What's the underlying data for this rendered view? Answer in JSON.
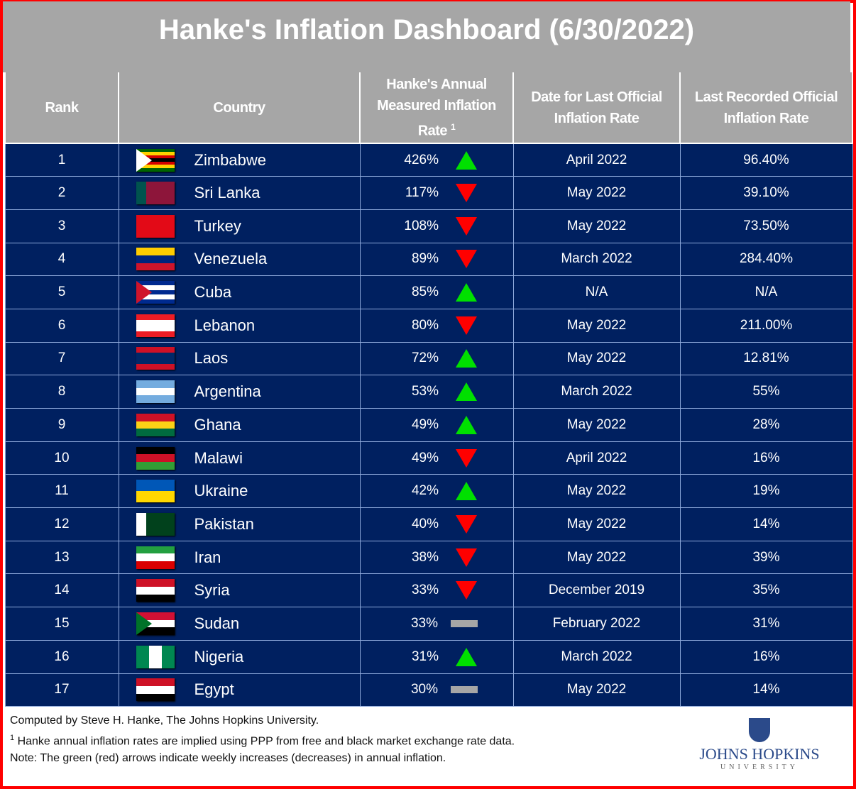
{
  "title": "Hanke's Inflation Dashboard (6/30/2022)",
  "headers": {
    "rank": "Rank",
    "country": "Country",
    "hanke": "Hanke's Annual Measured Inflation Rate",
    "hanke_sup": "1",
    "date": "Date for Last Official Inflation Rate",
    "official": "Last Recorded Official Inflation Rate"
  },
  "colors": {
    "up": "#00e000",
    "down": "#ff0000",
    "flat": "#a6a6a6",
    "row": "#002060",
    "header": "#a6a6a6"
  },
  "rows": [
    {
      "rank": "1",
      "country": "Zimbabwe",
      "rate": "426%",
      "trend": "up",
      "date": "April 2022",
      "official": "96.40%",
      "flag": [
        "#006400",
        "#ffd200",
        "#d40000",
        "#000000",
        "#d40000",
        "#ffd200",
        "#006400"
      ],
      "tri": "#ffffff"
    },
    {
      "rank": "2",
      "country": "Sri Lanka",
      "rate": "117%",
      "trend": "down",
      "date": "May 2022",
      "official": "39.10%",
      "flag": [
        "#8d153a"
      ],
      "hoist": "#00534e"
    },
    {
      "rank": "3",
      "country": "Turkey",
      "rate": "108%",
      "trend": "down",
      "date": "May 2022",
      "official": "73.50%",
      "flag": [
        "#e30a17"
      ]
    },
    {
      "rank": "4",
      "country": "Venezuela",
      "rate": "89%",
      "trend": "down",
      "date": "March 2022",
      "official": "284.40%",
      "flag": [
        "#ffcc00",
        "#00247d",
        "#cf142b"
      ]
    },
    {
      "rank": "5",
      "country": "Cuba",
      "rate": "85%",
      "trend": "up",
      "date": "N/A",
      "official": "N/A",
      "flag": [
        "#002a8f",
        "#ffffff",
        "#002a8f",
        "#ffffff",
        "#002a8f"
      ],
      "tri": "#cf142b"
    },
    {
      "rank": "6",
      "country": "Lebanon",
      "rate": "80%",
      "trend": "down",
      "date": "May 2022",
      "official": "211.00%",
      "flag": [
        "#ed1c24",
        "#ffffff",
        "#ffffff",
        "#ed1c24"
      ]
    },
    {
      "rank": "7",
      "country": "Laos",
      "rate": "72%",
      "trend": "up",
      "date": "May 2022",
      "official": "12.81%",
      "flag": [
        "#ce1126",
        "#002868",
        "#002868",
        "#ce1126"
      ]
    },
    {
      "rank": "8",
      "country": "Argentina",
      "rate": "53%",
      "trend": "up",
      "date": "March 2022",
      "official": "55%",
      "flag": [
        "#74acdf",
        "#ffffff",
        "#74acdf"
      ]
    },
    {
      "rank": "9",
      "country": "Ghana",
      "rate": "49%",
      "trend": "up",
      "date": "May 2022",
      "official": "28%",
      "flag": [
        "#ce1126",
        "#fcd116",
        "#006b3f"
      ]
    },
    {
      "rank": "10",
      "country": "Malawi",
      "rate": "49%",
      "trend": "down",
      "date": "April 2022",
      "official": "16%",
      "flag": [
        "#000000",
        "#ce1126",
        "#339e35"
      ]
    },
    {
      "rank": "11",
      "country": "Ukraine",
      "rate": "42%",
      "trend": "up",
      "date": "May 2022",
      "official": "19%",
      "flag": [
        "#0057b7",
        "#ffd700"
      ]
    },
    {
      "rank": "12",
      "country": "Pakistan",
      "rate": "40%",
      "trend": "down",
      "date": "May 2022",
      "official": "14%",
      "flag": [
        "#01411c"
      ],
      "hoist": "#ffffff"
    },
    {
      "rank": "13",
      "country": "Iran",
      "rate": "38%",
      "trend": "down",
      "date": "May 2022",
      "official": "39%",
      "flag": [
        "#239f40",
        "#ffffff",
        "#da0000"
      ]
    },
    {
      "rank": "14",
      "country": "Syria",
      "rate": "33%",
      "trend": "down",
      "date": "December 2019",
      "official": "35%",
      "flag": [
        "#ce1126",
        "#ffffff",
        "#000000"
      ]
    },
    {
      "rank": "15",
      "country": "Sudan",
      "rate": "33%",
      "trend": "flat",
      "date": "February 2022",
      "official": "31%",
      "flag": [
        "#d21034",
        "#ffffff",
        "#000000"
      ],
      "tri": "#007229"
    },
    {
      "rank": "16",
      "country": "Nigeria",
      "rate": "31%",
      "trend": "up",
      "date": "March 2022",
      "official": "16%",
      "flag": [
        "#ffffff"
      ],
      "vert": "#008751"
    },
    {
      "rank": "17",
      "country": "Egypt",
      "rate": "30%",
      "trend": "flat",
      "date": "May 2022",
      "official": "14%",
      "flag": [
        "#ce1126",
        "#ffffff",
        "#000000"
      ]
    }
  ],
  "footer": {
    "line1": "Computed by Steve H. Hanke, The Johns Hopkins University.",
    "line2_sup": "1",
    "line2": " Hanke annual inflation rates are implied using PPP from free and black market exchange rate data.",
    "line3": "Note: The green (red) arrows indicate weekly increases (decreases) in annual inflation."
  },
  "logo": {
    "name": "JOHNS HOPKINS",
    "sub": "UNIVERSITY"
  }
}
